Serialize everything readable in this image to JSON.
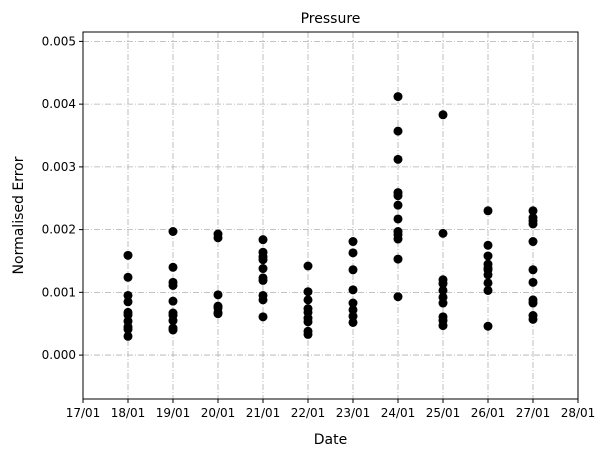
{
  "chart_data": {
    "type": "scatter",
    "title": "Pressure",
    "xlabel": "Date",
    "ylabel": "Normalised Error",
    "x_tick_labels": [
      "17/01",
      "18/01",
      "19/01",
      "20/01",
      "21/01",
      "22/01",
      "23/01",
      "24/01",
      "25/01",
      "26/01",
      "27/01",
      "28/01"
    ],
    "y_tick_labels": [
      "0.000",
      "0.001",
      "0.002",
      "0.003",
      "0.004",
      "0.005"
    ],
    "xlim": [
      "17/01",
      "28/01"
    ],
    "ylim": [
      -0.0007,
      0.00515
    ],
    "grid": true,
    "marker_color": "#000000",
    "points": [
      {
        "x": "18/01",
        "y": [
          0.00159,
          0.00124,
          0.00095,
          0.00085,
          0.00068,
          0.00064,
          0.00054,
          0.00045,
          0.00041,
          0.0003
        ]
      },
      {
        "x": "19/01",
        "y": [
          0.00197,
          0.0014,
          0.00116,
          0.00111,
          0.00086,
          0.00067,
          0.00063,
          0.00055,
          0.00043,
          0.0004
        ]
      },
      {
        "x": "20/01",
        "y": [
          0.00193,
          0.00187,
          0.00096,
          0.00078,
          0.00075,
          0.00068,
          0.00066
        ]
      },
      {
        "x": "21/01",
        "y": [
          0.00184,
          0.00164,
          0.00157,
          0.00152,
          0.00138,
          0.00123,
          0.00119,
          0.00095,
          0.00088,
          0.00061
        ]
      },
      {
        "x": "22/01",
        "y": [
          0.00142,
          0.00101,
          0.00088,
          0.00074,
          0.00068,
          0.00059,
          0.00053,
          0.00038,
          0.00033
        ]
      },
      {
        "x": "23/01",
        "y": [
          0.00181,
          0.00163,
          0.00136,
          0.00104,
          0.00083,
          0.00072,
          0.00062,
          0.00052
        ]
      },
      {
        "x": "24/01",
        "y": [
          0.00412,
          0.00357,
          0.00312,
          0.00259,
          0.00254,
          0.00239,
          0.00217,
          0.00197,
          0.00192,
          0.00185,
          0.00153,
          0.00093
        ]
      },
      {
        "x": "25/01",
        "y": [
          0.00383,
          0.00194,
          0.0012,
          0.00114,
          0.00103,
          0.00092,
          0.00083,
          0.00061,
          0.00055,
          0.00047
        ]
      },
      {
        "x": "26/01",
        "y": [
          0.0023,
          0.00175,
          0.00158,
          0.00145,
          0.00139,
          0.00136,
          0.00128,
          0.00115,
          0.00103,
          0.00046
        ]
      },
      {
        "x": "27/01",
        "y": [
          0.0023,
          0.00219,
          0.00214,
          0.00209,
          0.00181,
          0.00136,
          0.00116,
          0.00088,
          0.00083,
          0.00063,
          0.00057
        ]
      }
    ]
  }
}
